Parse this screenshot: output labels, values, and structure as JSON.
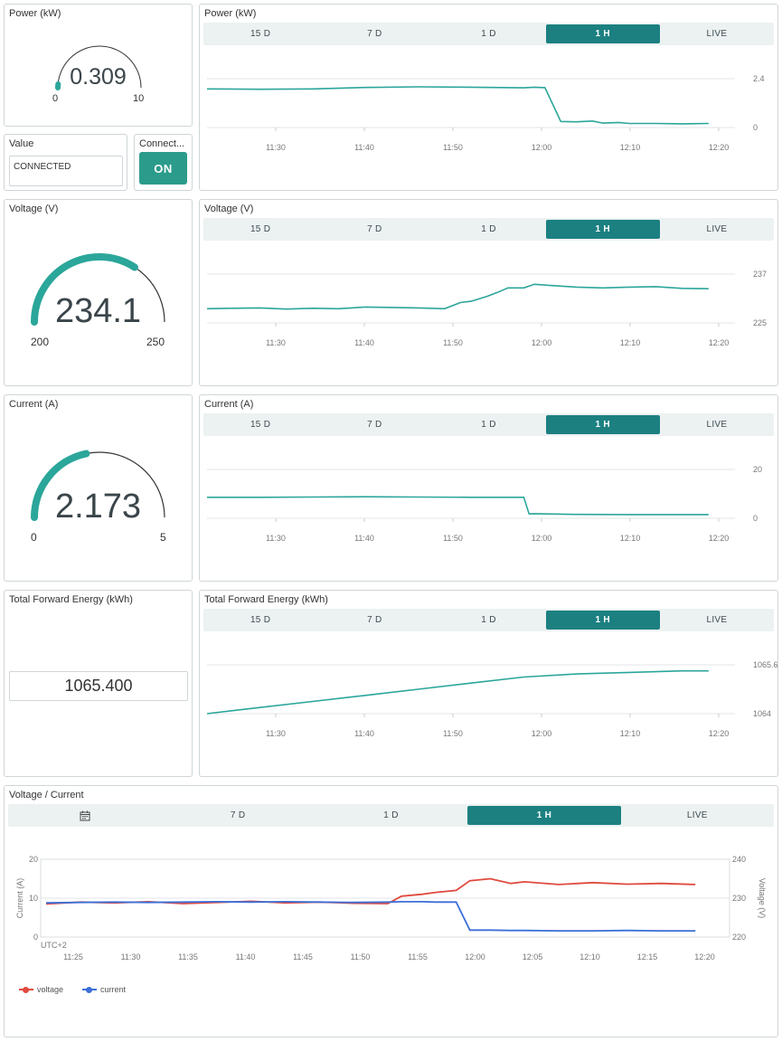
{
  "power_gauge": {
    "title": "Power (kW)",
    "value": "0.309",
    "min": "0",
    "max": "10",
    "fraction": 0.031
  },
  "value_widget": {
    "title": "Value",
    "text": "CONNECTED"
  },
  "switch_widget": {
    "title": "Connect...",
    "label": "ON"
  },
  "voltage_gauge": {
    "title": "Voltage (V)",
    "value": "234.1",
    "min": "200",
    "max": "250",
    "fraction": 0.682
  },
  "current_gauge": {
    "title": "Current (A)",
    "value": "2.173",
    "min": "0",
    "max": "5",
    "fraction": 0.435
  },
  "energy_value": {
    "title": "Total Forward Energy (kWh)",
    "value": "1065.400"
  },
  "tabs": [
    "15 D",
    "7 D",
    "1 D",
    "1 H",
    "LIVE"
  ],
  "combo_tabs": [
    "7 D",
    "1 D",
    "1 H",
    "LIVE"
  ],
  "colors": {
    "teal": "#2ba69a",
    "voltage": "#e04a3f",
    "current": "#3c6fd8",
    "active_tab": "#1c8081"
  },
  "chart_data": [
    {
      "id": "power",
      "type": "line",
      "title": "Power (kW)",
      "xticks": [
        "11:30",
        "11:40",
        "11:50",
        "12:00",
        "12:10",
        "12:20"
      ],
      "yticks": [
        "2.4",
        "0"
      ],
      "ylim": [
        0,
        2.4
      ],
      "x": [
        0,
        10,
        20,
        30,
        40,
        50,
        60,
        62,
        64,
        67,
        70,
        73,
        75,
        78,
        80,
        85,
        90,
        95
      ],
      "values": [
        1.9,
        1.88,
        1.9,
        1.97,
        2.0,
        1.98,
        1.95,
        1.98,
        1.96,
        0.3,
        0.28,
        0.32,
        0.22,
        0.25,
        0.2,
        0.2,
        0.18,
        0.2
      ]
    },
    {
      "id": "voltage",
      "type": "line",
      "title": "Voltage (V)",
      "xticks": [
        "11:30",
        "11:40",
        "11:50",
        "12:00",
        "12:10",
        "12:20"
      ],
      "yticks": [
        "237",
        "225"
      ],
      "ylim": [
        225,
        237
      ],
      "x": [
        0,
        5,
        10,
        15,
        20,
        25,
        30,
        35,
        40,
        45,
        48,
        50,
        53,
        55,
        57,
        60,
        62,
        65,
        70,
        75,
        80,
        85,
        90,
        95
      ],
      "values": [
        228.5,
        228.6,
        228.7,
        228.4,
        228.6,
        228.5,
        228.9,
        228.8,
        228.7,
        228.5,
        230.0,
        230.3,
        231.5,
        232.5,
        233.6,
        233.6,
        234.5,
        234.2,
        233.8,
        233.6,
        233.8,
        233.9,
        233.5,
        233.4
      ]
    },
    {
      "id": "current",
      "type": "line",
      "title": "Current (A)",
      "xticks": [
        "11:30",
        "11:40",
        "11:50",
        "12:00",
        "12:10",
        "12:20"
      ],
      "yticks": [
        "20",
        "0"
      ],
      "ylim": [
        0,
        20
      ],
      "x": [
        0,
        10,
        20,
        30,
        40,
        50,
        60,
        61,
        62,
        70,
        80,
        95
      ],
      "values": [
        8.6,
        8.6,
        8.7,
        8.8,
        8.7,
        8.6,
        8.6,
        1.8,
        1.9,
        1.6,
        1.5,
        1.5
      ]
    },
    {
      "id": "energy",
      "type": "line",
      "title": "Total Forward Energy (kWh)",
      "xticks": [
        "11:30",
        "11:40",
        "11:50",
        "12:00",
        "12:10",
        "12:20"
      ],
      "yticks": [
        "1065.6",
        "1064"
      ],
      "ylim": [
        1064,
        1065.6
      ],
      "x": [
        0,
        10,
        20,
        30,
        40,
        50,
        60,
        70,
        80,
        90,
        95
      ],
      "values": [
        1064.0,
        1064.2,
        1064.4,
        1064.6,
        1064.8,
        1065.0,
        1065.2,
        1065.3,
        1065.35,
        1065.4,
        1065.4
      ]
    },
    {
      "id": "combo",
      "type": "line",
      "title": "Voltage / Current",
      "xticks": [
        "11:25",
        "11:30",
        "11:35",
        "11:40",
        "11:45",
        "11:50",
        "11:55",
        "12:00",
        "12:05",
        "12:10",
        "12:15",
        "12:20"
      ],
      "timezone": "UTC+2",
      "ylabel_left": "Current (A)",
      "ylabel_right": "Voltage (V)",
      "yticks_left": [
        "20",
        "10",
        "0"
      ],
      "ylim_left": [
        0,
        20
      ],
      "yticks_right": [
        "240",
        "230",
        "220"
      ],
      "ylim_right": [
        220,
        240
      ],
      "x": [
        0,
        5,
        10,
        15,
        20,
        25,
        30,
        35,
        40,
        45,
        50,
        52,
        55,
        57,
        60,
        62,
        65,
        68,
        70,
        75,
        80,
        85,
        90,
        95
      ],
      "series": [
        {
          "name": "voltage",
          "values": [
            228.5,
            229.0,
            228.8,
            229.1,
            228.6,
            228.9,
            229.2,
            228.8,
            229.0,
            228.7,
            228.6,
            230.5,
            231.0,
            231.5,
            232.0,
            234.5,
            235.0,
            233.8,
            234.2,
            233.5,
            234.0,
            233.6,
            233.8,
            233.5
          ]
        },
        {
          "name": "current",
          "values": [
            8.8,
            8.9,
            9.0,
            8.9,
            9.0,
            9.1,
            9.0,
            9.1,
            9.0,
            8.9,
            9.0,
            9.1,
            9.1,
            9.0,
            9.0,
            1.8,
            1.8,
            1.7,
            1.7,
            1.6,
            1.6,
            1.7,
            1.6,
            1.6
          ]
        }
      ]
    }
  ]
}
